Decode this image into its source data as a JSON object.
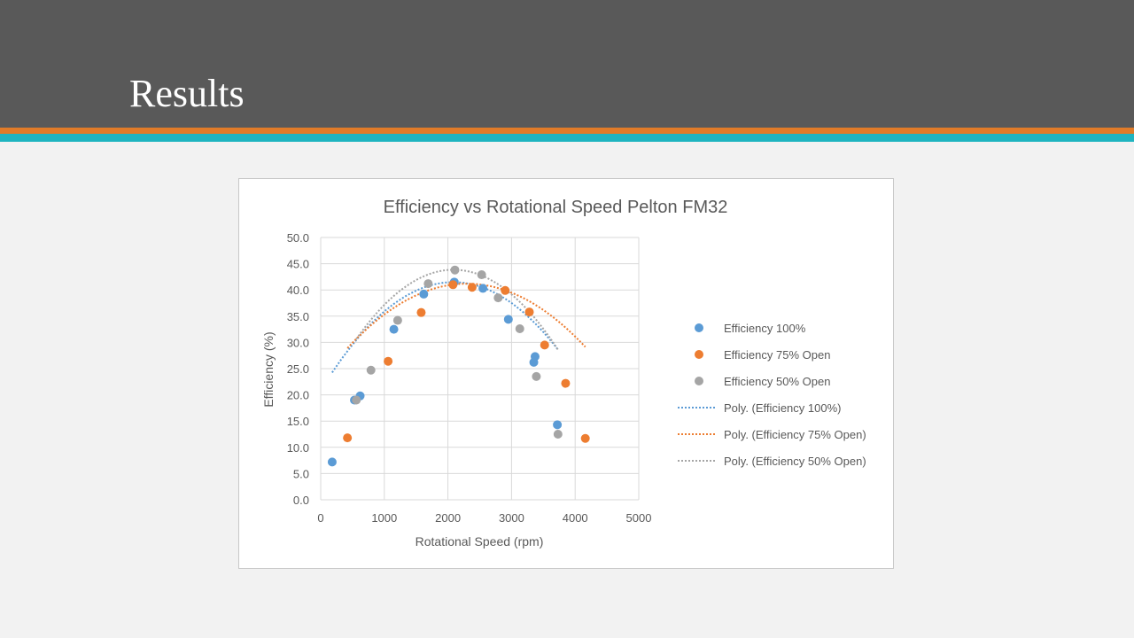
{
  "slide": {
    "title": "Results"
  },
  "colors": {
    "header_bg": "#595959",
    "stripe_orange": "#e07b29",
    "stripe_teal": "#1fb4c0"
  },
  "chart_data": {
    "type": "scatter",
    "title": "Efficiency vs Rotational Speed Pelton FM32",
    "xlabel": "Rotational Speed (rpm)",
    "ylabel": "Efficiency (%)",
    "xlim": [
      0,
      5000
    ],
    "ylim": [
      0,
      50
    ],
    "x_ticks": [
      "0",
      "1000",
      "2000",
      "3000",
      "4000",
      "5000"
    ],
    "y_ticks": [
      "0.0",
      "5.0",
      "10.0",
      "15.0",
      "20.0",
      "25.0",
      "30.0",
      "35.0",
      "40.0",
      "45.0",
      "50.0"
    ],
    "grid": true,
    "legend_position": "right",
    "series": [
      {
        "name": "Efficiency 100%",
        "trend_name": "Poly. (Efficiency 100%)",
        "color": "#5b9bd5",
        "points": [
          [
            180,
            7.2
          ],
          [
            530,
            19.0
          ],
          [
            620,
            19.8
          ],
          [
            1150,
            32.5
          ],
          [
            1620,
            39.2
          ],
          [
            2100,
            41.5
          ],
          [
            2550,
            40.3
          ],
          [
            2950,
            34.4
          ],
          [
            3350,
            26.2
          ],
          [
            3370,
            27.3
          ],
          [
            3720,
            14.3
          ]
        ],
        "trend_range": [
          180,
          3720
        ],
        "trend_coef": [
          -4.75e-06,
          0.0198,
          20.85
        ]
      },
      {
        "name": "Efficiency 75% Open",
        "trend_name": "Poly. (Efficiency 75% Open)",
        "color": "#ed7d31",
        "points": [
          [
            420,
            11.8
          ],
          [
            1060,
            26.4
          ],
          [
            1580,
            35.7
          ],
          [
            2080,
            41.0
          ],
          [
            2380,
            40.5
          ],
          [
            2900,
            39.9
          ],
          [
            3280,
            35.8
          ],
          [
            3520,
            29.5
          ],
          [
            3850,
            22.2
          ],
          [
            4160,
            11.7
          ]
        ],
        "trend_range": [
          420,
          4160
        ],
        "trend_coef": [
          -3.48e-06,
          0.016,
          22.8
        ]
      },
      {
        "name": "Efficiency 50% Open",
        "trend_name": "Poly. (Efficiency 50% Open)",
        "color": "#a5a5a5",
        "points": [
          [
            560,
            19.0
          ],
          [
            790,
            24.7
          ],
          [
            1210,
            34.2
          ],
          [
            1690,
            41.2
          ],
          [
            2110,
            43.8
          ],
          [
            2530,
            42.9
          ],
          [
            2790,
            38.5
          ],
          [
            3130,
            32.6
          ],
          [
            3390,
            23.5
          ],
          [
            3730,
            12.5
          ]
        ],
        "trend_range": [
          560,
          3730
        ],
        "trend_coef": [
          -5.65e-06,
          0.0236,
          19.2
        ]
      }
    ]
  }
}
